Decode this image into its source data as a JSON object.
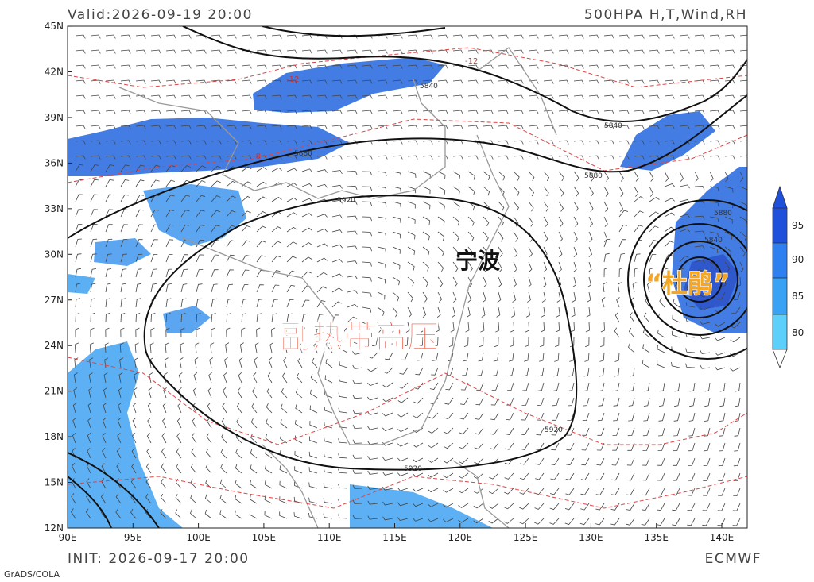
{
  "header": {
    "valid": "Valid:2026-09-19 20:00",
    "title": "500HPA H,T,Wind,RH"
  },
  "footer": {
    "init": "INIT: 2026-09-17 20:00",
    "model": "ECMWF",
    "credit": "GrADS/COLA"
  },
  "lon_labels": [
    "90E",
    "95E",
    "100E",
    "105E",
    "110E",
    "115E",
    "120E",
    "125E",
    "130E",
    "135E",
    "140E"
  ],
  "lat_labels": [
    "12N",
    "15N",
    "18N",
    "21N",
    "24N",
    "27N",
    "30N",
    "33N",
    "36N",
    "39N",
    "42N",
    "45N"
  ],
  "colorbar_labels": [
    "95",
    "90",
    "85",
    "80"
  ],
  "contour_labels": [
    "5920",
    "5920",
    "5920",
    "5880",
    "5880",
    "5880",
    "5840",
    "5840",
    "5840",
    "-12",
    "-12",
    "-8"
  ],
  "annotations": {
    "city": "宁波",
    "system": "副热带高压",
    "typhoon": "“杜鹃”"
  }
}
